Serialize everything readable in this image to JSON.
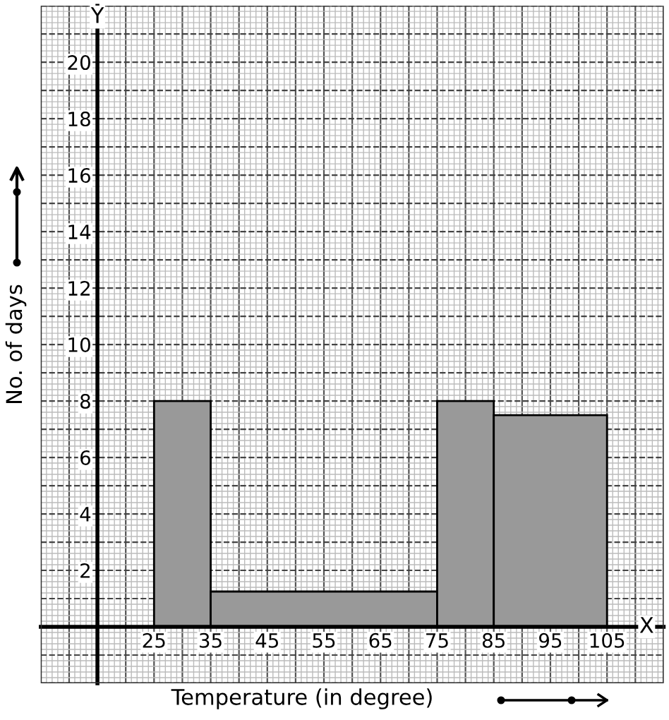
{
  "chart_data": {
    "type": "histogram",
    "xlabel": "Temperature (in degree)",
    "ylabel": "No. of days",
    "bins": [
      25,
      35,
      75,
      85,
      105
    ],
    "values": [
      8,
      1.25,
      8,
      7.5
    ],
    "color": "#999999",
    "xlim": [
      5,
      115
    ],
    "ylim": [
      -2,
      22
    ],
    "xticks": [
      25,
      35,
      45,
      55,
      65,
      75,
      85,
      95,
      105
    ],
    "yticks": [
      2,
      4,
      6,
      8,
      10,
      12,
      14,
      16,
      18,
      20
    ],
    "annotations": [
      {
        "text": "X",
        "x": 112,
        "y": 0
      },
      {
        "text": "Y",
        "x": 15,
        "y": 21.6
      }
    ],
    "grid": true
  }
}
